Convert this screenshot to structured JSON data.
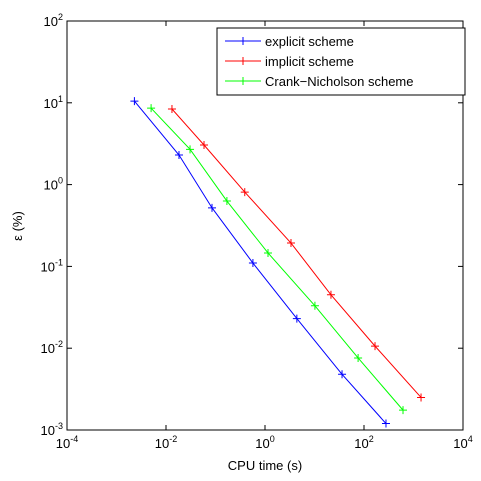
{
  "chart_data": {
    "type": "line",
    "xlabel": "CPU time (s)",
    "ylabel": "ε (%)",
    "xscale": "log",
    "yscale": "log",
    "xlim": [
      0.0001,
      10000
    ],
    "ylim": [
      0.001,
      100
    ],
    "xticks": [
      {
        "value": 0.0001,
        "label": "10",
        "exponent": "-4"
      },
      {
        "value": 0.01,
        "label": "10",
        "exponent": "-2"
      },
      {
        "value": 1,
        "label": "10",
        "exponent": "0"
      },
      {
        "value": 100,
        "label": "10",
        "exponent": "2"
      },
      {
        "value": 10000,
        "label": "10",
        "exponent": "4"
      }
    ],
    "yticks": [
      {
        "value": 0.001,
        "label": "10",
        "exponent": "-3"
      },
      {
        "value": 0.01,
        "label": "10",
        "exponent": "-2"
      },
      {
        "value": 0.1,
        "label": "10",
        "exponent": "-1"
      },
      {
        "value": 1,
        "label": "10",
        "exponent": "0"
      },
      {
        "value": 10,
        "label": "10",
        "exponent": "1"
      },
      {
        "value": 100,
        "label": "10",
        "exponent": "2"
      }
    ],
    "legend_position": "top-right",
    "series": [
      {
        "name": "explicit scheme",
        "color": "#0000ff",
        "x": [
          0.0023,
          0.0183,
          0.085,
          0.57,
          4.4,
          36,
          278
        ],
        "values": [
          10.5,
          2.3,
          0.52,
          0.11,
          0.023,
          0.0048,
          0.0012
        ]
      },
      {
        "name": "implicit scheme",
        "color": "#ff0000",
        "x": [
          0.0132,
          0.0586,
          0.39,
          3.35,
          21.5,
          167,
          1420
        ],
        "values": [
          8.4,
          3.05,
          0.81,
          0.193,
          0.045,
          0.0106,
          0.0025
        ]
      },
      {
        "name": "Crank−Nicholson scheme",
        "color": "#00ff00",
        "x": [
          0.005,
          0.0306,
          0.17,
          1.15,
          10.2,
          76,
          614
        ],
        "values": [
          8.6,
          2.7,
          0.63,
          0.146,
          0.033,
          0.0076,
          0.00175
        ]
      }
    ]
  }
}
